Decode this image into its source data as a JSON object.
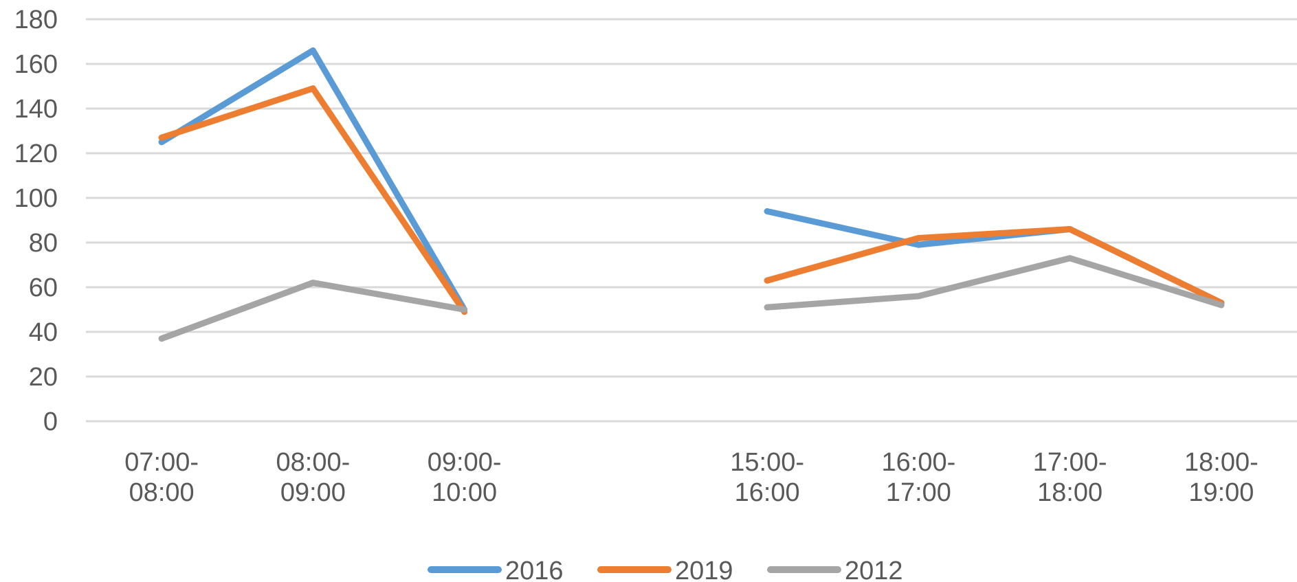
{
  "chart_data": {
    "type": "line",
    "categories": [
      [
        "07:00-",
        "08:00"
      ],
      [
        "08:00-",
        "09:00"
      ],
      [
        "09:00-",
        "10:00"
      ],
      [
        "",
        ""
      ],
      [
        "15:00-",
        "16:00"
      ],
      [
        "16:00-",
        "17:00"
      ],
      [
        "17:00-",
        "18:00"
      ],
      [
        "18:00-",
        "19:00"
      ]
    ],
    "series": [
      {
        "name": "2016",
        "color": "#5B9BD5",
        "values": [
          125,
          166,
          50,
          null,
          94,
          79,
          86,
          53
        ]
      },
      {
        "name": "2019",
        "color": "#ED7D31",
        "values": [
          127,
          149,
          49,
          null,
          63,
          82,
          86,
          53
        ]
      },
      {
        "name": "2012",
        "color": "#A5A5A5",
        "values": [
          37,
          62,
          50,
          null,
          51,
          56,
          73,
          52
        ]
      }
    ],
    "ylim": [
      0,
      180
    ],
    "yticks": [
      0,
      20,
      40,
      60,
      80,
      100,
      120,
      140,
      160,
      180
    ],
    "grid": true,
    "legend_position": "bottom",
    "gridline_color": "#D9D9D9"
  }
}
